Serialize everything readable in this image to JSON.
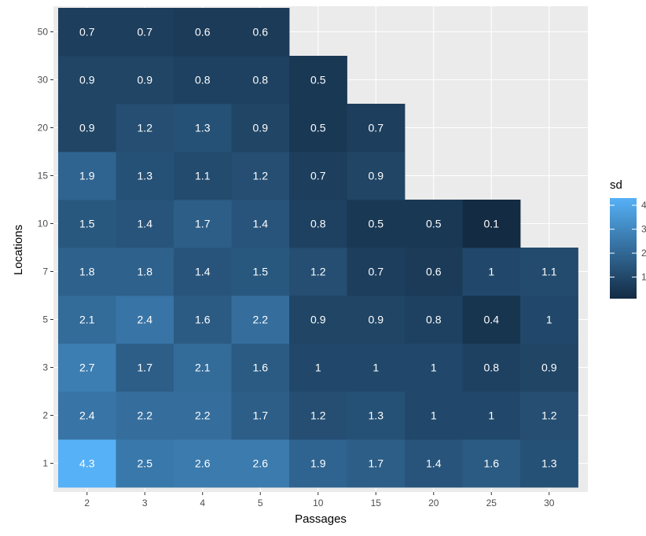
{
  "chart_data": {
    "type": "heatmap",
    "xlabel": "Passages",
    "ylabel": "Locations",
    "x_categories": [
      "2",
      "3",
      "4",
      "5",
      "10",
      "15",
      "20",
      "25",
      "30"
    ],
    "y_categories": [
      "1",
      "2",
      "3",
      "5",
      "7",
      "10",
      "15",
      "20",
      "30",
      "50"
    ],
    "cells": [
      {
        "x": "2",
        "y": "1",
        "value": 4.3
      },
      {
        "x": "3",
        "y": "1",
        "value": 2.5
      },
      {
        "x": "4",
        "y": "1",
        "value": 2.6
      },
      {
        "x": "5",
        "y": "1",
        "value": 2.6
      },
      {
        "x": "10",
        "y": "1",
        "value": 1.9
      },
      {
        "x": "15",
        "y": "1",
        "value": 1.7
      },
      {
        "x": "20",
        "y": "1",
        "value": 1.4
      },
      {
        "x": "25",
        "y": "1",
        "value": 1.6
      },
      {
        "x": "30",
        "y": "1",
        "value": 1.3
      },
      {
        "x": "2",
        "y": "2",
        "value": 2.4
      },
      {
        "x": "3",
        "y": "2",
        "value": 2.2
      },
      {
        "x": "4",
        "y": "2",
        "value": 2.2
      },
      {
        "x": "5",
        "y": "2",
        "value": 1.7
      },
      {
        "x": "10",
        "y": "2",
        "value": 1.2
      },
      {
        "x": "15",
        "y": "2",
        "value": 1.3
      },
      {
        "x": "20",
        "y": "2",
        "value": 1
      },
      {
        "x": "25",
        "y": "2",
        "value": 1
      },
      {
        "x": "30",
        "y": "2",
        "value": 1.2
      },
      {
        "x": "2",
        "y": "3",
        "value": 2.7
      },
      {
        "x": "3",
        "y": "3",
        "value": 1.7
      },
      {
        "x": "4",
        "y": "3",
        "value": 2.1
      },
      {
        "x": "5",
        "y": "3",
        "value": 1.6
      },
      {
        "x": "10",
        "y": "3",
        "value": 1
      },
      {
        "x": "15",
        "y": "3",
        "value": 1
      },
      {
        "x": "20",
        "y": "3",
        "value": 1
      },
      {
        "x": "25",
        "y": "3",
        "value": 0.8
      },
      {
        "x": "30",
        "y": "3",
        "value": 0.9
      },
      {
        "x": "2",
        "y": "5",
        "value": 2.1
      },
      {
        "x": "3",
        "y": "5",
        "value": 2.4
      },
      {
        "x": "4",
        "y": "5",
        "value": 1.6
      },
      {
        "x": "5",
        "y": "5",
        "value": 2.2
      },
      {
        "x": "10",
        "y": "5",
        "value": 0.9
      },
      {
        "x": "15",
        "y": "5",
        "value": 0.9
      },
      {
        "x": "20",
        "y": "5",
        "value": 0.8
      },
      {
        "x": "25",
        "y": "5",
        "value": 0.4
      },
      {
        "x": "30",
        "y": "5",
        "value": 1
      },
      {
        "x": "2",
        "y": "7",
        "value": 1.8
      },
      {
        "x": "3",
        "y": "7",
        "value": 1.8
      },
      {
        "x": "4",
        "y": "7",
        "value": 1.4
      },
      {
        "x": "5",
        "y": "7",
        "value": 1.5
      },
      {
        "x": "10",
        "y": "7",
        "value": 1.2
      },
      {
        "x": "15",
        "y": "7",
        "value": 0.7
      },
      {
        "x": "20",
        "y": "7",
        "value": 0.6
      },
      {
        "x": "25",
        "y": "7",
        "value": 1
      },
      {
        "x": "30",
        "y": "7",
        "value": 1.1
      },
      {
        "x": "2",
        "y": "10",
        "value": 1.5
      },
      {
        "x": "3",
        "y": "10",
        "value": 1.4
      },
      {
        "x": "4",
        "y": "10",
        "value": 1.7
      },
      {
        "x": "5",
        "y": "10",
        "value": 1.4
      },
      {
        "x": "10",
        "y": "10",
        "value": 0.8
      },
      {
        "x": "15",
        "y": "10",
        "value": 0.5
      },
      {
        "x": "20",
        "y": "10",
        "value": 0.5
      },
      {
        "x": "25",
        "y": "10",
        "value": 0.1
      },
      {
        "x": "2",
        "y": "15",
        "value": 1.9
      },
      {
        "x": "3",
        "y": "15",
        "value": 1.3
      },
      {
        "x": "4",
        "y": "15",
        "value": 1.1
      },
      {
        "x": "5",
        "y": "15",
        "value": 1.2
      },
      {
        "x": "10",
        "y": "15",
        "value": 0.7
      },
      {
        "x": "15",
        "y": "15",
        "value": 0.9
      },
      {
        "x": "2",
        "y": "20",
        "value": 0.9
      },
      {
        "x": "3",
        "y": "20",
        "value": 1.2
      },
      {
        "x": "4",
        "y": "20",
        "value": 1.3
      },
      {
        "x": "5",
        "y": "20",
        "value": 0.9
      },
      {
        "x": "10",
        "y": "20",
        "value": 0.5
      },
      {
        "x": "15",
        "y": "20",
        "value": 0.7
      },
      {
        "x": "2",
        "y": "30",
        "value": 0.9
      },
      {
        "x": "3",
        "y": "30",
        "value": 0.9
      },
      {
        "x": "4",
        "y": "30",
        "value": 0.8
      },
      {
        "x": "5",
        "y": "30",
        "value": 0.8
      },
      {
        "x": "10",
        "y": "30",
        "value": 0.5
      },
      {
        "x": "2",
        "y": "50",
        "value": 0.7
      },
      {
        "x": "3",
        "y": "50",
        "value": 0.7
      },
      {
        "x": "4",
        "y": "50",
        "value": 0.6
      },
      {
        "x": "5",
        "y": "50",
        "value": 0.6
      }
    ],
    "legend": {
      "title": "sd",
      "position": "right",
      "ticks": [
        "1",
        "2",
        "3",
        "4"
      ],
      "low_color": "#132B43",
      "high_color": "#56B1F7"
    },
    "panel_background": "#EBEBEB",
    "grid": true
  }
}
